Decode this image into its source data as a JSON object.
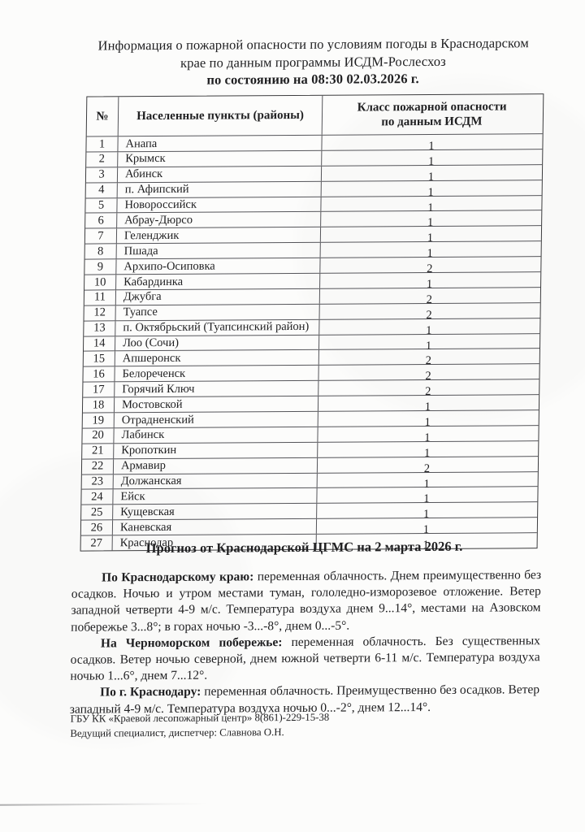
{
  "document": {
    "title_lines": [
      "Информация о пожарной опасности по условиям погоды в Краснодарском",
      "крае по данным программы ИСДМ-Рослесхоз",
      "по состоянию на 08:30 02.03.2026 г."
    ]
  },
  "table": {
    "headers": {
      "num": "№",
      "name": "Населенные пункты (районы)",
      "class_line1": "Класс пожарной опасности",
      "class_line2": "по данным ИСДМ"
    },
    "rows": [
      {
        "num": "1",
        "name": "Анапа",
        "value": "1"
      },
      {
        "num": "2",
        "name": "Крымск",
        "value": "1"
      },
      {
        "num": "3",
        "name": "Абинск",
        "value": "1"
      },
      {
        "num": "4",
        "name": "п. Афипский",
        "value": "1"
      },
      {
        "num": "5",
        "name": "Новороссийск",
        "value": "1"
      },
      {
        "num": "6",
        "name": "Абрау-Дюрсо",
        "value": "1"
      },
      {
        "num": "7",
        "name": "Геленджик",
        "value": "1"
      },
      {
        "num": "8",
        "name": "Пшада",
        "value": "1"
      },
      {
        "num": "9",
        "name": "Архипо-Осиповка",
        "value": "2"
      },
      {
        "num": "10",
        "name": "Кабардинка",
        "value": "1"
      },
      {
        "num": "11",
        "name": "Джубга",
        "value": "2"
      },
      {
        "num": "12",
        "name": "Туапсе",
        "value": "2"
      },
      {
        "num": "13",
        "name": "п. Октябрьский (Туапсинский район)",
        "value": "1"
      },
      {
        "num": "14",
        "name": "Лоо (Сочи)",
        "value": "1"
      },
      {
        "num": "15",
        "name": "Апшеронск",
        "value": "2"
      },
      {
        "num": "16",
        "name": "Белореченск",
        "value": "2"
      },
      {
        "num": "17",
        "name": "Горячий Ключ",
        "value": "2"
      },
      {
        "num": "18",
        "name": "Мостовской",
        "value": "1"
      },
      {
        "num": "19",
        "name": "Отрадненский",
        "value": "1"
      },
      {
        "num": "20",
        "name": "Лабинск",
        "value": "1"
      },
      {
        "num": "21",
        "name": "Кропоткин",
        "value": "1"
      },
      {
        "num": "22",
        "name": "Армавир",
        "value": "2"
      },
      {
        "num": "23",
        "name": "Должанская",
        "value": "1"
      },
      {
        "num": "24",
        "name": "Ейск",
        "value": "1"
      },
      {
        "num": "25",
        "name": "Кущевская",
        "value": "1"
      },
      {
        "num": "26",
        "name": "Каневская",
        "value": "1"
      },
      {
        "num": "27",
        "name": "Краснодар",
        "value": "1"
      }
    ]
  },
  "forecast": {
    "heading": "Прогноз от Краснодарской ЦГМС на 2 марта 2026 г.",
    "paragraphs": [
      {
        "lead": "По Краснодарскому краю:",
        "text": " переменная облачность. Днем преимущественно без осадков. Ночью и утром местами туман, гололедно-изморозевое отложение. Ветер западной четверти 4-9 м/с. Температура воздуха днем 9...14°, местами на Азовском побережье 3...8°; в горах ночью -3...-8°, днем 0...-5°."
      },
      {
        "lead": "На Черноморском побережье:",
        "text": " переменная облачность. Без существенных осадков. Ветер ночью северной, днем южной четверти 6-11 м/с. Температура воздуха ночью 1...6°, днем 7...12°."
      },
      {
        "lead": "По г. Краснодару:",
        "text": " переменная облачность. Преимущественно без осадков. Ветер западный 4-9 м/с. Температура воздуха ночью 0...-2°, днем 12...14°."
      }
    ]
  },
  "footer": {
    "line1": "ГБУ КК «Краевой лесопожарный центр» 8(861)-229-15-38",
    "line2": "Ведущий специалист, диспетчер: Славнова О.Н."
  },
  "colors": {
    "ink": "#1f1f21",
    "paper": "#fcfcfb",
    "table_border": "#3c3c3e"
  }
}
